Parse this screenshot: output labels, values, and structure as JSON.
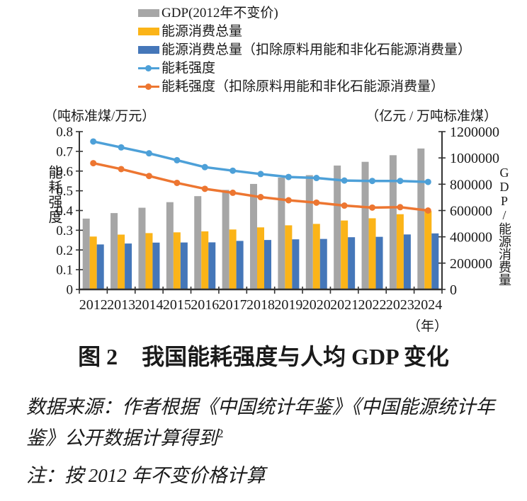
{
  "caption": {
    "prefix": "图 2",
    "title": "我国能耗强度与人均 GDP 变化"
  },
  "notes": {
    "source": "数据来源：作者根据《中国统计年鉴》《中国能源统计年鉴》公开数据计算得到",
    "source_superscript": "2",
    "note": "注：按 2012 年不变价格计算"
  },
  "chart_data": {
    "type": "combo bar+line",
    "legend_position": "top",
    "grid": false,
    "categories": [
      "2012",
      "2013",
      "2014",
      "2015",
      "2016",
      "2017",
      "2018",
      "2019",
      "2020",
      "2021",
      "2022",
      "2023",
      "2024"
    ],
    "x_unit": "（年）",
    "left_axis": {
      "unit": "（吨标准煤/万元）",
      "title": "能耗强度",
      "min": 0,
      "max": 0.8,
      "step": 0.1
    },
    "right_axis": {
      "unit": "（亿元 / 万吨标准煤）",
      "title": "GDP/能源消费量",
      "min": 0,
      "max": 1200000,
      "step": 200000
    },
    "series": [
      {
        "name": "GDP(2012年不变价)",
        "type": "bar",
        "axis": "right",
        "color": "#a6a6a6",
        "values": [
          538600,
          580600,
          621200,
          663500,
          709300,
          756800,
          802200,
          850300,
          869000,
          942000,
          970300,
          1020700,
          1071700
        ]
      },
      {
        "name": "能源消费总量",
        "type": "bar",
        "axis": "right",
        "color": "#fbb418",
        "values": [
          402100,
          416900,
          428300,
          434100,
          441500,
          455800,
          471900,
          487500,
          498300,
          524000,
          541000,
          572000,
          596000
        ]
      },
      {
        "name": "能源消费总量（扣除原料用能和非化石能源消费量）",
        "type": "bar",
        "axis": "right",
        "color": "#4577b9",
        "values": [
          342000,
          349000,
          356000,
          357000,
          358000,
          369000,
          376000,
          381000,
          384000,
          397000,
          400000,
          418000,
          426000
        ]
      },
      {
        "name": "能耗强度",
        "type": "line",
        "axis": "left",
        "color": "#4da0d8",
        "values": [
          0.75,
          0.72,
          0.69,
          0.655,
          0.62,
          0.602,
          0.585,
          0.57,
          0.565,
          0.552,
          0.55,
          0.55,
          0.545
        ]
      },
      {
        "name": "能耗强度（扣除原料用能和非化石能源消费量）",
        "type": "line",
        "axis": "left",
        "color": "#ed7631",
        "values": [
          0.64,
          0.61,
          0.575,
          0.54,
          0.51,
          0.49,
          0.468,
          0.452,
          0.44,
          0.425,
          0.415,
          0.417,
          0.4
        ]
      }
    ]
  }
}
